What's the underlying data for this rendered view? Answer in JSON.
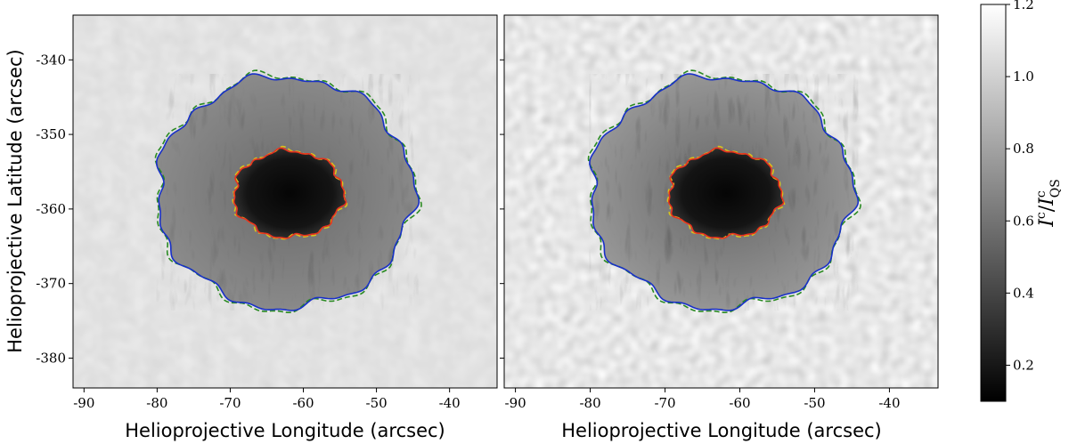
{
  "figure": {
    "panels": [
      {
        "name": "left",
        "xlabel": "Helioprojective Longitude (arcsec)",
        "ylabel": "Helioprojective Latitude (arcsec)",
        "show_y_ticklabels": true
      },
      {
        "name": "right",
        "xlabel": "Helioprojective Longitude (arcsec)",
        "ylabel": "",
        "show_y_ticklabels": false
      }
    ],
    "x_axis": {
      "range": [
        -91.5,
        -33.5
      ],
      "ticks": [
        -90,
        -80,
        -70,
        -60,
        -50,
        -40
      ],
      "tick_labels": [
        "-90",
        "-80",
        "-70",
        "-60",
        "-50",
        "-40"
      ]
    },
    "y_axis": {
      "range": [
        -384,
        -334
      ],
      "ticks": [
        -340,
        -350,
        -360,
        -370,
        -380
      ],
      "tick_labels": [
        "-340",
        "-350",
        "-360",
        "-370",
        "-380"
      ]
    },
    "colorbar": {
      "label_main": "I",
      "label_sup": "c",
      "label_sep": "/",
      "label_main2": "I",
      "label_sup2": "c",
      "label_sub2": "QS",
      "range": [
        0.1,
        1.2
      ],
      "ticks": [
        0.2,
        0.4,
        0.6,
        0.8,
        1.0,
        1.2
      ],
      "tick_labels": [
        "0.2",
        "0.4",
        "0.6",
        "0.8",
        "1.0",
        "1.2"
      ],
      "colormap": "gray"
    },
    "colors": {
      "umbra_contour": "#e8321e",
      "umbra_contour_dashed": "#d8c21c",
      "penumbra_contour": "#1830c8",
      "penumbra_contour_dashed": "#2a8a22"
    },
    "spot": {
      "center": [
        -62,
        -358
      ],
      "umbra_intensity": 0.15,
      "penumbra_intensity": 0.55,
      "quiet_sun_intensity": 0.85
    }
  }
}
